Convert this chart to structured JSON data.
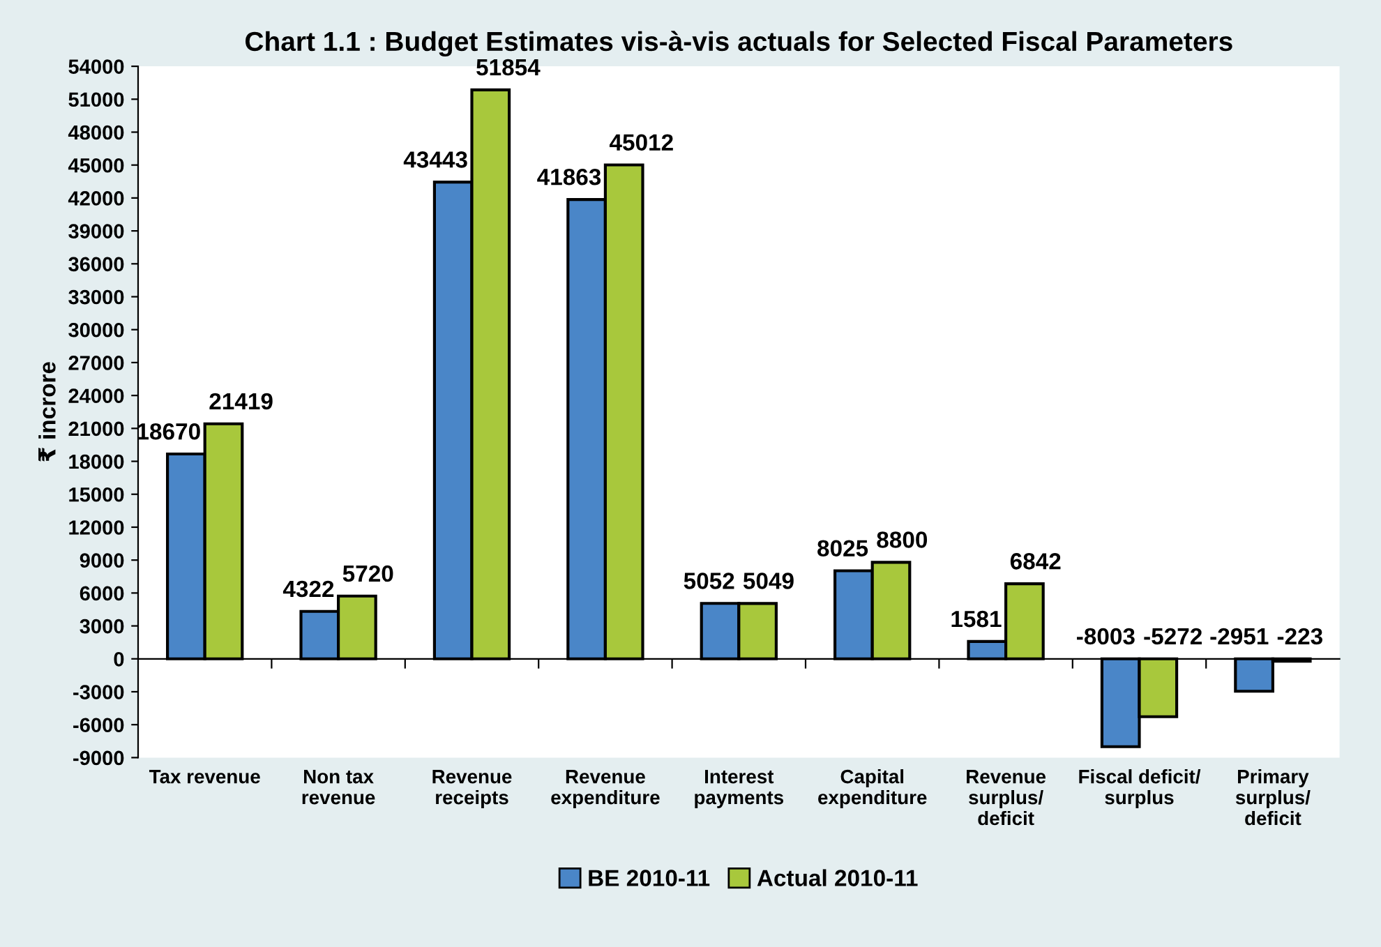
{
  "chart_data": {
    "type": "bar",
    "title": "Chart 1.1 : Budget Estimates vis-à-vis actuals for Selected Fiscal Parameters",
    "ylabel": "₹ incrore",
    "categories": [
      "Tax revenue",
      "Non tax\nrevenue",
      "Revenue\nreceipts",
      "Revenue\nexpenditure",
      "Interest\npayments",
      "Capital\nexpenditure",
      "Revenue\nsurplus/\ndeficit",
      "Fiscal deficit/\nsurplus",
      "Primary\nsurplus/\ndeficit"
    ],
    "series": [
      {
        "name": "BE 2010-11",
        "color": "#4a86c8",
        "values": [
          18670,
          4322,
          43443,
          41863,
          5052,
          8025,
          1581,
          -8003,
          -2951
        ]
      },
      {
        "name": "Actual 2010-11",
        "color": "#a8c83c",
        "values": [
          21419,
          5720,
          51854,
          45012,
          5049,
          8800,
          6842,
          -5272,
          -223
        ]
      }
    ],
    "ylim": [
      -9000,
      54000
    ],
    "yticks": [
      -9000,
      -6000,
      -3000,
      0,
      3000,
      6000,
      9000,
      12000,
      15000,
      18000,
      21000,
      24000,
      27000,
      30000,
      33000,
      36000,
      39000,
      42000,
      45000,
      48000,
      51000,
      54000
    ],
    "legend": "bottom",
    "data_labels": true
  }
}
